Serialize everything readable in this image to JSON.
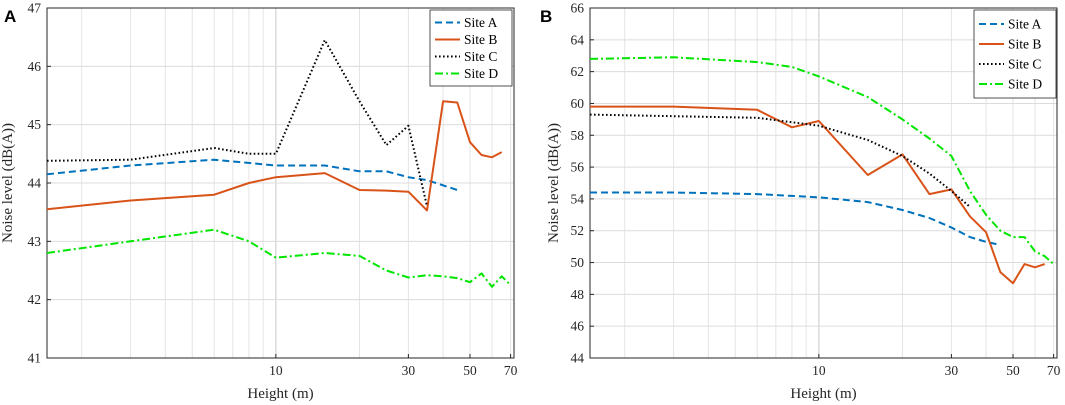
{
  "chart_data": [
    {
      "type": "line",
      "panel": "A",
      "xscale": "log",
      "xlim": [
        1.5,
        72
      ],
      "ylim": [
        41,
        47
      ],
      "xlabel": "Height (m)",
      "ylabel": "Noise level (dB(A))",
      "xticks": [
        10,
        30,
        50,
        70
      ],
      "yticks": [
        41,
        42,
        43,
        44,
        45,
        46,
        47
      ],
      "grid": true,
      "legend_position": "top-right",
      "series": [
        {
          "name": "Site A",
          "color": "#0072BD",
          "dash": "dashed",
          "x": [
            1.5,
            3,
            6,
            10,
            15,
            20,
            25,
            30,
            35,
            45
          ],
          "y": [
            44.15,
            44.3,
            44.4,
            44.3,
            44.3,
            44.2,
            44.2,
            44.1,
            44.05,
            43.88
          ]
        },
        {
          "name": "Site B",
          "color": "#D95319",
          "dash": "solid",
          "x": [
            1.5,
            3,
            6,
            8,
            10,
            15,
            20,
            25,
            30,
            35,
            40,
            45,
            50,
            55,
            60,
            65
          ],
          "y": [
            43.55,
            43.7,
            43.8,
            44.0,
            44.1,
            44.17,
            43.88,
            43.87,
            43.85,
            43.53,
            45.4,
            45.38,
            44.7,
            44.48,
            44.44,
            44.53
          ]
        },
        {
          "name": "Site C",
          "color": "#000000",
          "dash": "dotted",
          "x": [
            1.5,
            3,
            6,
            8,
            10,
            15,
            20,
            25,
            30,
            35
          ],
          "y": [
            44.38,
            44.4,
            44.6,
            44.5,
            44.5,
            46.45,
            45.4,
            44.65,
            44.98,
            43.6
          ]
        },
        {
          "name": "Site D",
          "color": "#00E600",
          "dash": "dashdot",
          "x": [
            1.5,
            3,
            6,
            8,
            10,
            15,
            20,
            25,
            30,
            35,
            40,
            45,
            50,
            55,
            60,
            65,
            70
          ],
          "y": [
            42.8,
            43.0,
            43.2,
            43.0,
            42.72,
            42.8,
            42.75,
            42.5,
            42.38,
            42.42,
            42.4,
            42.37,
            42.3,
            42.45,
            42.22,
            42.4,
            42.25
          ]
        }
      ]
    },
    {
      "type": "line",
      "panel": "B",
      "xscale": "log",
      "xlim": [
        1.5,
        72
      ],
      "ylim": [
        44,
        66
      ],
      "xlabel": "Height (m)",
      "ylabel": "Noise level (dB(A))",
      "xticks": [
        10,
        30,
        50,
        70
      ],
      "yticks": [
        44,
        46,
        48,
        50,
        52,
        54,
        56,
        58,
        60,
        62,
        64,
        66
      ],
      "grid": true,
      "legend_position": "top-right",
      "series": [
        {
          "name": "Site A",
          "color": "#0072BD",
          "dash": "dashed",
          "x": [
            1.5,
            3,
            6,
            10,
            15,
            20,
            25,
            30,
            35,
            40,
            45
          ],
          "y": [
            54.4,
            54.4,
            54.3,
            54.1,
            53.8,
            53.3,
            52.8,
            52.2,
            51.6,
            51.3,
            51.1
          ]
        },
        {
          "name": "Site B",
          "color": "#D95319",
          "dash": "solid",
          "x": [
            1.5,
            3,
            6,
            8,
            10,
            15,
            20,
            25,
            30,
            35,
            40,
            45,
            50,
            55,
            60,
            65
          ],
          "y": [
            59.8,
            59.8,
            59.6,
            58.5,
            58.9,
            55.5,
            56.8,
            54.3,
            54.6,
            52.9,
            51.9,
            49.4,
            48.7,
            49.9,
            49.7,
            49.9
          ]
        },
        {
          "name": "Site C",
          "color": "#000000",
          "dash": "dotted",
          "x": [
            1.5,
            3,
            6,
            10,
            15,
            20,
            25,
            30,
            35
          ],
          "y": [
            59.3,
            59.2,
            59.1,
            58.6,
            57.7,
            56.7,
            55.6,
            54.5,
            53.5
          ]
        },
        {
          "name": "Site D",
          "color": "#00E600",
          "dash": "dashdot",
          "x": [
            1.5,
            3,
            6,
            8,
            10,
            15,
            20,
            25,
            30,
            35,
            40,
            45,
            50,
            55,
            60,
            65,
            70
          ],
          "y": [
            62.8,
            62.9,
            62.6,
            62.3,
            61.7,
            60.4,
            59.0,
            57.8,
            56.7,
            54.5,
            53.0,
            52.0,
            51.6,
            51.6,
            50.7,
            50.4,
            49.9
          ]
        }
      ]
    }
  ]
}
